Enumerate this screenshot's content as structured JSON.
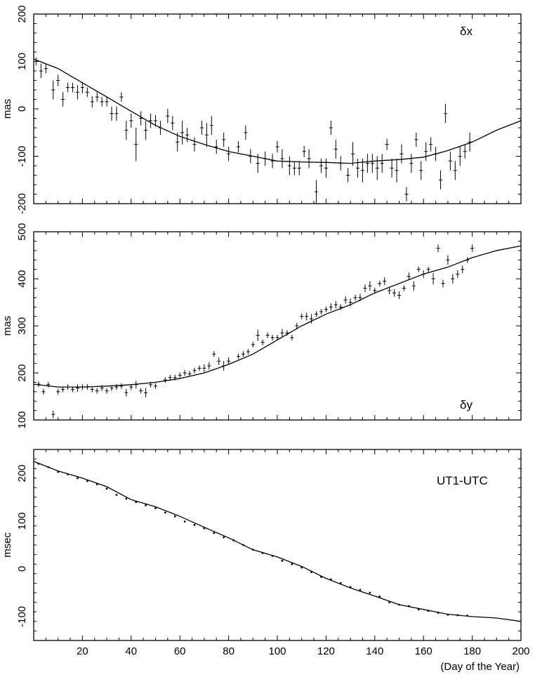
{
  "chart_data": [
    {
      "type": "scatter",
      "panel_label": "δx",
      "ylabel": "mas",
      "xlim": [
        0,
        200
      ],
      "ylim": [
        -200,
        200
      ],
      "yticks": [
        -200,
        -100,
        0,
        100,
        200
      ],
      "grid": false,
      "series": [
        {
          "kind": "model-line",
          "x": [
            0,
            10,
            20,
            30,
            40,
            50,
            60,
            70,
            80,
            90,
            100,
            110,
            120,
            130,
            140,
            150,
            160,
            170,
            180,
            190,
            200
          ],
          "y": [
            105,
            85,
            55,
            25,
            -5,
            -35,
            -58,
            -75,
            -90,
            -100,
            -110,
            -112,
            -113,
            -115,
            -110,
            -107,
            -102,
            -88,
            -70,
            -45,
            -25
          ]
        },
        {
          "kind": "observations-with-errors",
          "x": [
            1,
            3,
            5,
            8,
            10,
            12,
            14,
            16,
            18,
            20,
            22,
            24,
            26,
            28,
            30,
            32,
            34,
            36,
            38,
            40,
            42,
            44,
            46,
            48,
            50,
            52,
            55,
            57,
            59,
            61,
            63,
            66,
            69,
            71,
            73,
            75,
            78,
            80,
            84,
            87,
            89,
            92,
            95,
            98,
            100,
            102,
            105,
            107,
            109,
            111,
            113,
            116,
            118,
            120,
            122,
            124,
            126,
            129,
            131,
            133,
            135,
            137,
            139,
            141,
            143,
            145,
            147,
            149,
            151,
            153,
            155,
            157,
            159,
            161,
            163,
            165,
            167,
            169,
            171,
            173,
            175,
            177,
            179
          ],
          "y": [
            100,
            80,
            85,
            40,
            60,
            20,
            45,
            45,
            35,
            45,
            35,
            15,
            25,
            15,
            15,
            -10,
            -10,
            25,
            -45,
            -25,
            -75,
            -20,
            -45,
            -25,
            -25,
            -40,
            -15,
            -30,
            -70,
            -50,
            -55,
            -75,
            -40,
            -55,
            -35,
            -80,
            -65,
            -95,
            -80,
            -50,
            -100,
            -115,
            -105,
            -110,
            -80,
            -105,
            -120,
            -125,
            -125,
            -90,
            -105,
            -175,
            -120,
            -125,
            -40,
            -85,
            -115,
            -140,
            -95,
            -125,
            -130,
            -115,
            -115,
            -125,
            -115,
            -75,
            -125,
            -130,
            -95,
            -180,
            -115,
            -65,
            -130,
            -90,
            -75,
            -95,
            -150,
            -10,
            -110,
            -130,
            -100,
            -90,
            -70
          ],
          "err": [
            8,
            15,
            10,
            20,
            12,
            15,
            10,
            10,
            15,
            12,
            10,
            12,
            10,
            10,
            10,
            15,
            15,
            10,
            20,
            15,
            35,
            15,
            20,
            15,
            12,
            15,
            15,
            15,
            20,
            25,
            15,
            15,
            15,
            25,
            20,
            15,
            15,
            15,
            12,
            15,
            15,
            20,
            15,
            15,
            12,
            20,
            20,
            15,
            15,
            12,
            20,
            25,
            15,
            20,
            15,
            20,
            15,
            15,
            25,
            20,
            25,
            20,
            20,
            25,
            20,
            12,
            20,
            25,
            20,
            15,
            20,
            15,
            20,
            20,
            15,
            15,
            20,
            20,
            20,
            20,
            20,
            15,
            20
          ]
        }
      ]
    },
    {
      "type": "scatter",
      "panel_label": "δy",
      "ylabel": "mas",
      "xlim": [
        0,
        200
      ],
      "ylim": [
        100,
        500
      ],
      "yticks": [
        100,
        200,
        300,
        400,
        500
      ],
      "grid": false,
      "series": [
        {
          "kind": "model-line",
          "x": [
            0,
            10,
            20,
            30,
            40,
            50,
            60,
            70,
            80,
            90,
            100,
            110,
            120,
            130,
            140,
            150,
            160,
            170,
            180,
            190,
            200
          ],
          "y": [
            176,
            170,
            170,
            172,
            175,
            180,
            188,
            200,
            218,
            240,
            270,
            300,
            325,
            345,
            370,
            390,
            410,
            425,
            445,
            460,
            470
          ]
        },
        {
          "kind": "observations-with-errors",
          "x": [
            2,
            4,
            6,
            8,
            10,
            12,
            14,
            16,
            18,
            20,
            22,
            24,
            26,
            28,
            30,
            32,
            34,
            36,
            38,
            40,
            42,
            44,
            46,
            48,
            50,
            54,
            56,
            58,
            60,
            62,
            64,
            66,
            68,
            70,
            72,
            74,
            76,
            78,
            80,
            84,
            86,
            88,
            90,
            92,
            94,
            96,
            98,
            100,
            102,
            104,
            106,
            108,
            110,
            112,
            114,
            116,
            118,
            120,
            122,
            124,
            126,
            128,
            130,
            132,
            134,
            136,
            138,
            140,
            142,
            144,
            146,
            148,
            150,
            152,
            154,
            156,
            158,
            160,
            162,
            164,
            166,
            168,
            170,
            172,
            174,
            176,
            178,
            180
          ],
          "y": [
            176,
            160,
            175,
            112,
            160,
            165,
            170,
            165,
            168,
            170,
            170,
            165,
            162,
            168,
            162,
            168,
            170,
            172,
            158,
            170,
            175,
            162,
            158,
            175,
            172,
            185,
            190,
            190,
            195,
            200,
            198,
            205,
            210,
            210,
            215,
            240,
            225,
            215,
            225,
            235,
            240,
            245,
            260,
            280,
            265,
            280,
            275,
            275,
            285,
            285,
            275,
            300,
            320,
            320,
            315,
            325,
            330,
            335,
            340,
            345,
            340,
            355,
            350,
            360,
            360,
            380,
            385,
            375,
            390,
            395,
            375,
            370,
            365,
            380,
            405,
            385,
            420,
            410,
            420,
            400,
            465,
            390,
            440,
            400,
            410,
            420,
            440,
            465
          ],
          "err": [
            6,
            6,
            6,
            8,
            6,
            6,
            6,
            6,
            8,
            6,
            6,
            6,
            6,
            6,
            6,
            6,
            6,
            6,
            8,
            6,
            8,
            6,
            10,
            6,
            6,
            6,
            6,
            6,
            6,
            6,
            6,
            6,
            6,
            8,
            8,
            6,
            8,
            10,
            8,
            6,
            6,
            6,
            6,
            12,
            6,
            6,
            6,
            6,
            8,
            6,
            6,
            6,
            6,
            8,
            10,
            6,
            6,
            6,
            8,
            8,
            6,
            8,
            8,
            6,
            8,
            8,
            10,
            6,
            6,
            8,
            8,
            8,
            8,
            6,
            8,
            10,
            6,
            8,
            6,
            12,
            8,
            8,
            10,
            10,
            8,
            8,
            6,
            8
          ]
        }
      ]
    },
    {
      "type": "scatter",
      "panel_label": "UT1-UTC",
      "ylabel": "msec",
      "xlabel": "(Day of the Year)",
      "xlim": [
        0,
        200
      ],
      "ylim": [
        -150,
        250
      ],
      "xticks": [
        20,
        40,
        60,
        80,
        100,
        120,
        140,
        160,
        180,
        200
      ],
      "yticks": [
        -100,
        0,
        100,
        200
      ],
      "grid": false,
      "series": [
        {
          "kind": "model-line",
          "x": [
            0,
            10,
            20,
            30,
            40,
            50,
            60,
            70,
            80,
            90,
            100,
            110,
            120,
            130,
            140,
            150,
            160,
            170,
            180,
            190,
            200
          ],
          "y": [
            225,
            205,
            190,
            172,
            145,
            130,
            110,
            87,
            65,
            40,
            25,
            5,
            -20,
            -40,
            -57,
            -75,
            -85,
            -95,
            -100,
            -103,
            -110
          ]
        },
        {
          "kind": "observations",
          "x": [
            2,
            6,
            10,
            14,
            18,
            22,
            26,
            30,
            34,
            38,
            42,
            46,
            50,
            54,
            58,
            62,
            66,
            70,
            74,
            78,
            82,
            86,
            90,
            94,
            98,
            102,
            106,
            110,
            114,
            118,
            122,
            126,
            130,
            134,
            138,
            142,
            146,
            150,
            154,
            158,
            162,
            166,
            170,
            174,
            178
          ],
          "y": [
            220,
            213,
            203,
            198,
            190,
            184,
            177,
            168,
            155,
            147,
            140,
            133,
            127,
            118,
            110,
            99,
            92,
            85,
            75,
            66,
            60,
            50,
            40,
            33,
            27,
            17,
            10,
            3,
            -7,
            -17,
            -22,
            -30,
            -38,
            -44,
            -50,
            -58,
            -70,
            -75,
            -78,
            -85,
            -88,
            -92,
            -96,
            -97,
            -98
          ]
        }
      ]
    }
  ]
}
